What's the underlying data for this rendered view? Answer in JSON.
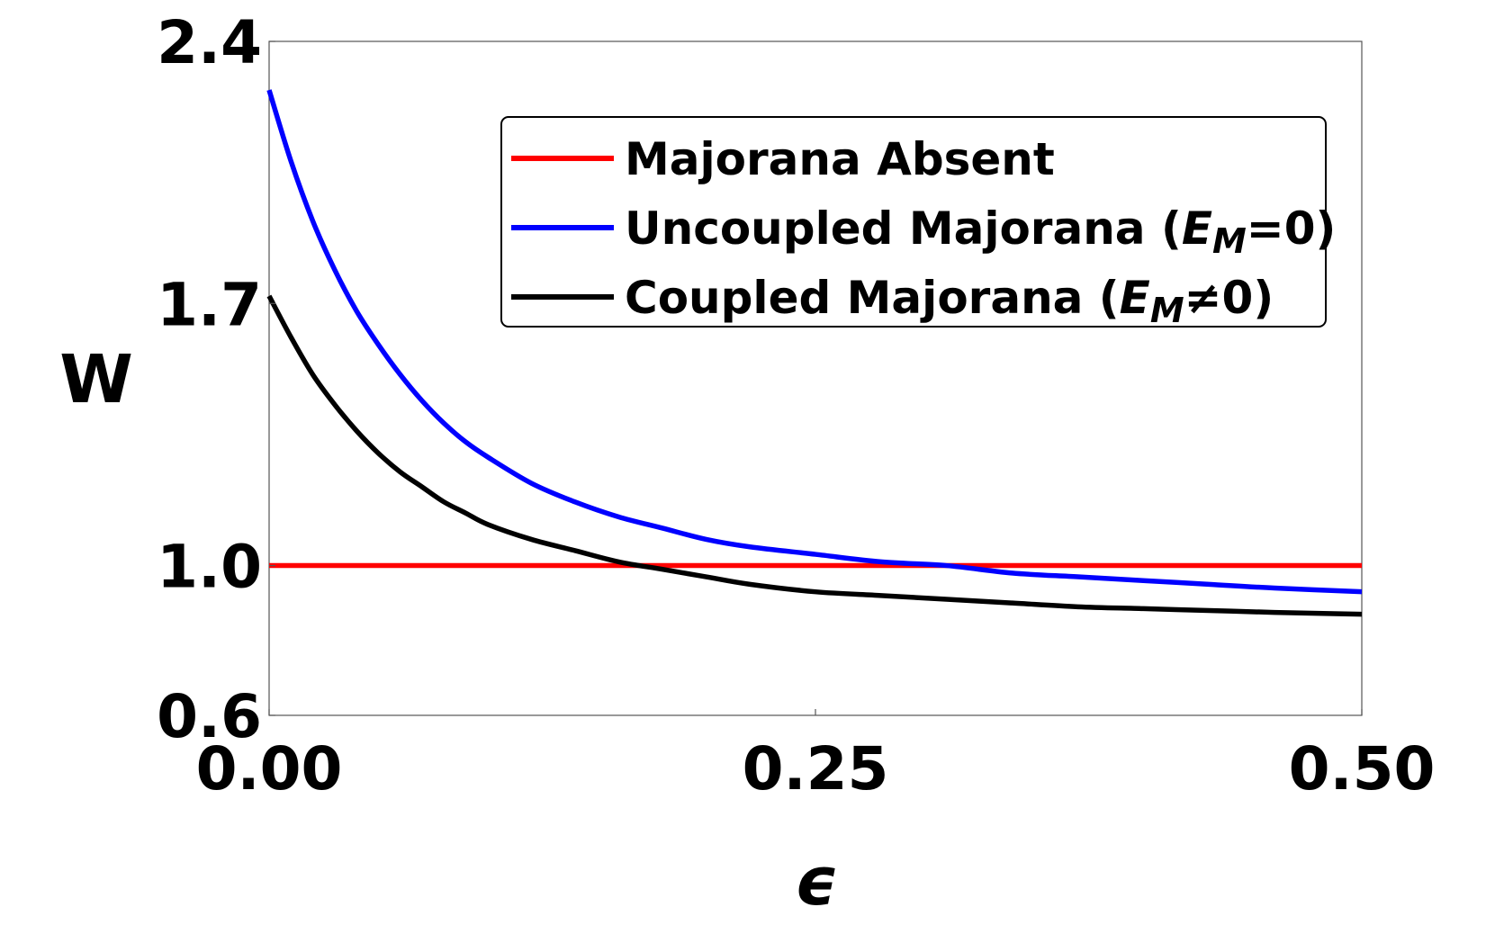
{
  "chart_data": {
    "type": "line",
    "xlabel": "ϵ",
    "ylabel": "W",
    "xlim": [
      0,
      0.5
    ],
    "ylim": [
      0.6,
      2.4
    ],
    "xticks": [
      "0.00",
      "0.25",
      "0.50"
    ],
    "yticks": [
      "0.6",
      "1.0",
      "1.7",
      "2.4"
    ],
    "grid": false,
    "legend_position": "top-right",
    "x": [
      0.0,
      0.01,
      0.02,
      0.03,
      0.04,
      0.05,
      0.06,
      0.07,
      0.08,
      0.09,
      0.1,
      0.12,
      0.14,
      0.16,
      0.18,
      0.2,
      0.22,
      0.25,
      0.28,
      0.31,
      0.34,
      0.37,
      0.4,
      0.43,
      0.46,
      0.5
    ],
    "series": [
      {
        "name": "Majorana Absent",
        "color": "#ff0000",
        "values": [
          1.0,
          1.0,
          1.0,
          1.0,
          1.0,
          1.0,
          1.0,
          1.0,
          1.0,
          1.0,
          1.0,
          1.0,
          1.0,
          1.0,
          1.0,
          1.0,
          1.0,
          1.0,
          1.0,
          1.0,
          1.0,
          1.0,
          1.0,
          1.0,
          1.0,
          1.0
        ]
      },
      {
        "name": "Uncoupled Majorana (E_M=0)",
        "color": "#0000ff",
        "values": [
          2.27,
          2.08,
          1.92,
          1.79,
          1.68,
          1.59,
          1.51,
          1.44,
          1.38,
          1.33,
          1.29,
          1.22,
          1.17,
          1.13,
          1.1,
          1.07,
          1.05,
          1.03,
          1.01,
          1.0,
          0.98,
          0.97,
          0.96,
          0.95,
          0.94,
          0.93
        ]
      },
      {
        "name": "Coupled Majorana (E_M≠0)",
        "color": "#000000",
        "values": [
          1.72,
          1.61,
          1.51,
          1.43,
          1.36,
          1.3,
          1.25,
          1.21,
          1.17,
          1.14,
          1.11,
          1.07,
          1.04,
          1.01,
          0.99,
          0.97,
          0.95,
          0.93,
          0.92,
          0.91,
          0.9,
          0.89,
          0.885,
          0.88,
          0.875,
          0.87
        ]
      }
    ],
    "legend": [
      {
        "label": "Majorana Absent",
        "parts": [
          {
            "t": "Majorana Absent"
          }
        ]
      },
      {
        "label": "Uncoupled Majorana (E_M=0)",
        "parts": [
          {
            "t": "Uncoupled Majorana ("
          },
          {
            "t": "E",
            "i": true
          },
          {
            "t": "M",
            "i": true,
            "sub": true
          },
          {
            "t": "=0)"
          }
        ]
      },
      {
        "label": "Coupled Majorana (E_M≠0)",
        "parts": [
          {
            "t": "Coupled Majorana ("
          },
          {
            "t": "E",
            "i": true
          },
          {
            "t": "M",
            "i": true,
            "sub": true
          },
          {
            "t": "≠0)"
          }
        ]
      }
    ]
  }
}
